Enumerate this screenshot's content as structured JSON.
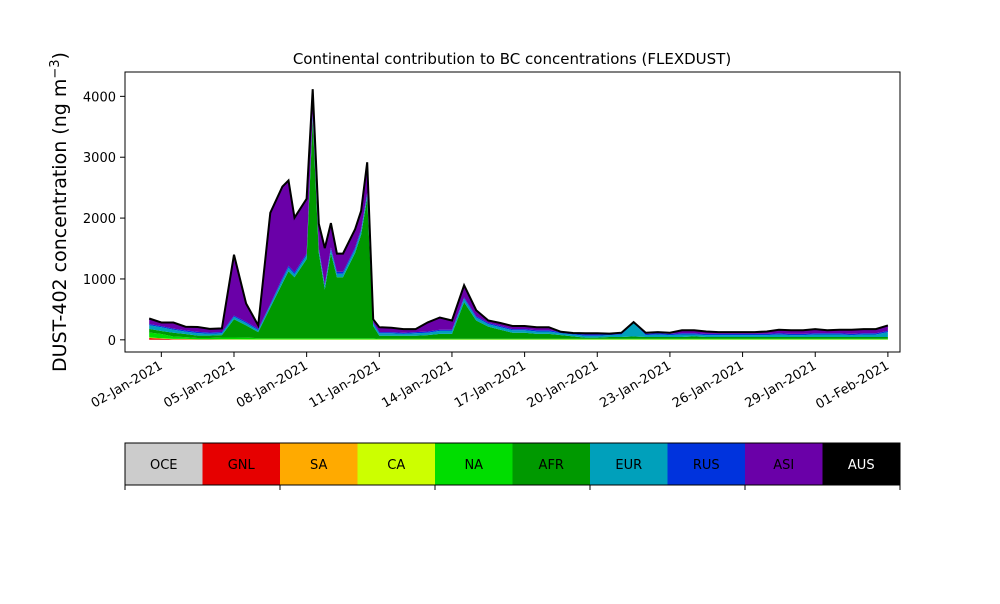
{
  "chart_data": {
    "type": "area",
    "title": "Continental contribution to BC concentrations (FLEXDUST)",
    "ylabel": "DUST-402 concentration (ng m",
    "ylabel_superscript": "−3",
    "ylabel_suffix": ")",
    "xlabel": "",
    "ylim": [
      -200,
      4400
    ],
    "xlim": [
      "2020-12-31T12:00",
      "2021-02-01T12:00"
    ],
    "yticks": [
      0,
      1000,
      2000,
      3000,
      4000
    ],
    "xticks": [
      "02-Jan-2021",
      "05-Jan-2021",
      "08-Jan-2021",
      "11-Jan-2021",
      "14-Jan-2021",
      "17-Jan-2021",
      "20-Jan-2021",
      "23-Jan-2021",
      "26-Jan-2021",
      "29-Jan-2021",
      "01-Feb-2021"
    ],
    "stacked": true,
    "grid": false,
    "series_order": [
      "OCE",
      "GNL",
      "SA",
      "CA",
      "NA",
      "AFR",
      "EUR",
      "RUS",
      "ASI",
      "AUS"
    ],
    "colors": {
      "OCE": "#cccccc",
      "GNL": "#e60000",
      "SA": "#ffaa00",
      "CA": "#ccff00",
      "NA": "#00dd00",
      "AFR": "#009900",
      "EUR": "#00a0bb",
      "RUS": "#0033dd",
      "ASI": "#6a00a8",
      "AUS": "#000000"
    },
    "x": [
      "2021-01-01T12:00",
      "2021-01-02T00:00",
      "2021-01-02T12:00",
      "2021-01-03T00:00",
      "2021-01-03T12:00",
      "2021-01-04T00:00",
      "2021-01-04T12:00",
      "2021-01-05T00:00",
      "2021-01-05T12:00",
      "2021-01-06T00:00",
      "2021-01-06T12:00",
      "2021-01-07T00:00",
      "2021-01-07T06:00",
      "2021-01-07T12:00",
      "2021-01-08T00:00",
      "2021-01-08T06:00",
      "2021-01-08T12:00",
      "2021-01-08T18:00",
      "2021-01-09T00:00",
      "2021-01-09T06:00",
      "2021-01-09T12:00",
      "2021-01-10T00:00",
      "2021-01-10T06:00",
      "2021-01-10T12:00",
      "2021-01-10T18:00",
      "2021-01-11T00:00",
      "2021-01-11T12:00",
      "2021-01-12T00:00",
      "2021-01-12T12:00",
      "2021-01-13T00:00",
      "2021-01-13T12:00",
      "2021-01-14T00:00",
      "2021-01-14T12:00",
      "2021-01-15T00:00",
      "2021-01-15T12:00",
      "2021-01-16T00:00",
      "2021-01-16T12:00",
      "2021-01-17T00:00",
      "2021-01-17T12:00",
      "2021-01-18T00:00",
      "2021-01-18T12:00",
      "2021-01-19T00:00",
      "2021-01-19T12:00",
      "2021-01-20T00:00",
      "2021-01-20T12:00",
      "2021-01-21T00:00",
      "2021-01-21T12:00",
      "2021-01-22T00:00",
      "2021-01-22T12:00",
      "2021-01-23T00:00",
      "2021-01-23T12:00",
      "2021-01-24T00:00",
      "2021-01-24T12:00",
      "2021-01-25T00:00",
      "2021-01-25T12:00",
      "2021-01-26T00:00",
      "2021-01-26T12:00",
      "2021-01-27T00:00",
      "2021-01-27T12:00",
      "2021-01-28T00:00",
      "2021-01-28T12:00",
      "2021-01-29T00:00",
      "2021-01-29T12:00",
      "2021-01-30T00:00",
      "2021-01-30T12:00",
      "2021-01-31T00:00",
      "2021-01-31T12:00",
      "2021-02-01T00:00"
    ],
    "series": [
      {
        "name": "OCE",
        "values": [
          0,
          0,
          0,
          0,
          0,
          0,
          0,
          0,
          0,
          0,
          0,
          0,
          0,
          0,
          0,
          0,
          0,
          0,
          0,
          0,
          0,
          0,
          0,
          0,
          0,
          0,
          0,
          0,
          0,
          0,
          0,
          0,
          0,
          0,
          0,
          0,
          0,
          0,
          0,
          0,
          0,
          0,
          0,
          0,
          0,
          0,
          0,
          0,
          0,
          0,
          0,
          0,
          0,
          0,
          0,
          0,
          0,
          0,
          0,
          0,
          0,
          0,
          0,
          0,
          0,
          0,
          0,
          0
        ]
      },
      {
        "name": "GNL",
        "values": [
          30,
          20,
          10,
          10,
          5,
          5,
          3,
          3,
          2,
          2,
          2,
          2,
          2,
          2,
          2,
          2,
          2,
          2,
          2,
          2,
          2,
          2,
          2,
          2,
          2,
          2,
          2,
          2,
          2,
          2,
          2,
          2,
          2,
          2,
          2,
          2,
          2,
          2,
          2,
          2,
          2,
          2,
          2,
          2,
          2,
          2,
          2,
          2,
          2,
          2,
          2,
          2,
          2,
          2,
          2,
          2,
          2,
          2,
          2,
          2,
          2,
          2,
          2,
          2,
          2,
          2,
          2,
          2
        ]
      },
      {
        "name": "SA",
        "values": [
          0,
          0,
          0,
          0,
          0,
          0,
          0,
          0,
          0,
          0,
          0,
          0,
          0,
          0,
          0,
          0,
          0,
          0,
          0,
          0,
          0,
          0,
          0,
          0,
          0,
          0,
          0,
          0,
          0,
          0,
          0,
          0,
          0,
          0,
          0,
          0,
          0,
          0,
          0,
          0,
          0,
          0,
          0,
          0,
          0,
          0,
          0,
          0,
          0,
          0,
          0,
          0,
          0,
          0,
          0,
          0,
          0,
          0,
          0,
          0,
          0,
          0,
          0,
          0,
          0,
          0,
          0,
          0
        ]
      },
      {
        "name": "CA",
        "values": [
          10,
          5,
          5,
          5,
          5,
          5,
          5,
          5,
          5,
          5,
          5,
          5,
          5,
          5,
          5,
          5,
          5,
          5,
          5,
          5,
          5,
          5,
          5,
          5,
          5,
          5,
          5,
          5,
          5,
          5,
          5,
          5,
          5,
          5,
          5,
          5,
          5,
          5,
          5,
          5,
          5,
          5,
          5,
          5,
          5,
          5,
          5,
          5,
          5,
          5,
          5,
          5,
          5,
          5,
          5,
          5,
          5,
          5,
          5,
          5,
          5,
          5,
          5,
          5,
          5,
          5,
          5,
          5
        ]
      },
      {
        "name": "NA",
        "values": [
          80,
          70,
          40,
          30,
          20,
          20,
          30,
          30,
          30,
          20,
          20,
          20,
          20,
          20,
          20,
          20,
          20,
          20,
          20,
          20,
          20,
          20,
          20,
          20,
          20,
          10,
          10,
          10,
          10,
          10,
          10,
          10,
          10,
          10,
          10,
          10,
          10,
          10,
          10,
          10,
          10,
          10,
          10,
          10,
          10,
          10,
          10,
          10,
          10,
          10,
          10,
          10,
          10,
          10,
          10,
          10,
          10,
          10,
          10,
          10,
          10,
          10,
          10,
          10,
          10,
          10,
          10,
          10
        ]
      },
      {
        "name": "AFR",
        "values": [
          60,
          50,
          60,
          50,
          40,
          40,
          40,
          300,
          200,
          100,
          500,
          900,
          1100,
          1000,
          1300,
          3600,
          1400,
          800,
          1400,
          1000,
          1000,
          1400,
          1700,
          2300,
          200,
          50,
          50,
          50,
          50,
          60,
          80,
          80,
          600,
          300,
          200,
          150,
          100,
          100,
          80,
          80,
          60,
          40,
          20,
          20,
          30,
          30,
          40,
          30,
          30,
          30,
          30,
          40,
          30,
          30,
          30,
          30,
          30,
          30,
          30,
          30,
          30,
          30,
          30,
          30,
          30,
          30,
          30,
          30
        ]
      },
      {
        "name": "EUR",
        "values": [
          60,
          60,
          50,
          40,
          40,
          30,
          30,
          40,
          40,
          30,
          40,
          60,
          60,
          50,
          60,
          60,
          50,
          50,
          60,
          60,
          60,
          60,
          60,
          60,
          40,
          40,
          40,
          30,
          40,
          40,
          50,
          50,
          60,
          50,
          40,
          40,
          40,
          40,
          40,
          40,
          30,
          30,
          30,
          30,
          30,
          40,
          220,
          30,
          40,
          30,
          40,
          30,
          30,
          30,
          30,
          30,
          30,
          30,
          40,
          30,
          30,
          40,
          40,
          40,
          30,
          40,
          40,
          80
        ]
      },
      {
        "name": "RUS",
        "values": [
          20,
          20,
          20,
          20,
          20,
          20,
          20,
          20,
          20,
          20,
          20,
          30,
          30,
          30,
          30,
          30,
          30,
          30,
          30,
          30,
          30,
          30,
          30,
          30,
          20,
          20,
          20,
          20,
          20,
          20,
          20,
          20,
          20,
          20,
          20,
          20,
          20,
          20,
          20,
          20,
          20,
          20,
          20,
          20,
          20,
          20,
          10,
          20,
          20,
          20,
          20,
          20,
          20,
          20,
          20,
          20,
          20,
          20,
          20,
          20,
          20,
          20,
          20,
          20,
          20,
          20,
          20,
          20
        ]
      },
      {
        "name": "ASI",
        "values": [
          90,
          60,
          100,
          60,
          80,
          60,
          60,
          1000,
          300,
          60,
          1500,
          1500,
          1400,
          900,
          900,
          400,
          400,
          600,
          400,
          300,
          300,
          300,
          300,
          500,
          50,
          80,
          70,
          60,
          50,
          150,
          200,
          150,
          200,
          100,
          40,
          50,
          50,
          50,
          50,
          50,
          5,
          5,
          20,
          20,
          5,
          10,
          5,
          20,
          20,
          20,
          50,
          50,
          40,
          30,
          30,
          30,
          30,
          40,
          60,
          60,
          60,
          70,
          50,
          60,
          70,
          70,
          70,
          90
        ]
      },
      {
        "name": "AUS",
        "values": [
          0,
          0,
          0,
          0,
          0,
          0,
          0,
          0,
          0,
          0,
          0,
          0,
          0,
          0,
          0,
          0,
          0,
          0,
          0,
          0,
          0,
          0,
          0,
          0,
          0,
          0,
          0,
          0,
          0,
          0,
          0,
          0,
          0,
          0,
          0,
          0,
          0,
          0,
          0,
          0,
          0,
          0,
          0,
          0,
          0,
          0,
          0,
          0,
          0,
          0,
          0,
          0,
          0,
          0,
          0,
          0,
          0,
          0,
          0,
          0,
          0,
          0,
          0,
          0,
          0,
          0,
          0,
          0
        ]
      }
    ]
  }
}
